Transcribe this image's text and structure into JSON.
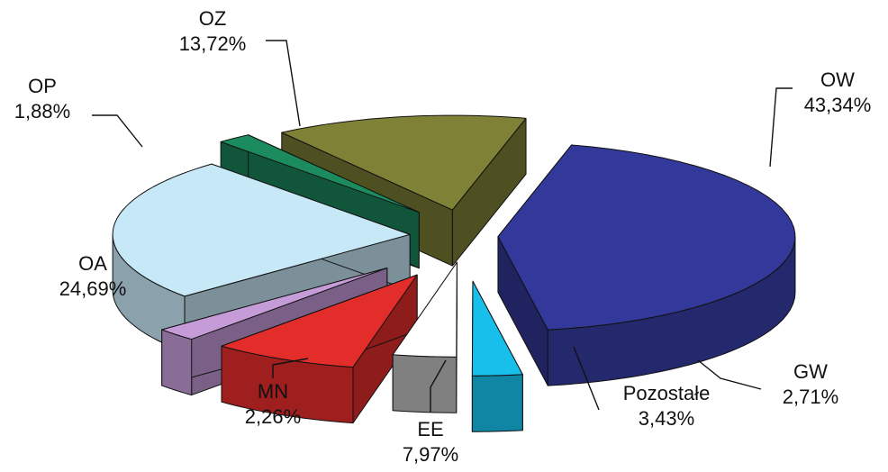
{
  "chart_data": {
    "type": "pie",
    "exploded": true,
    "three_d": true,
    "slices": [
      {
        "name": "OW",
        "value": 43.34,
        "label": "43,34%",
        "color": "#33399A"
      },
      {
        "name": "GW",
        "value": 2.71,
        "label": "2,71%",
        "color": "#17BFEA"
      },
      {
        "name": "Pozostałe",
        "value": 3.43,
        "label": "3,43%",
        "color": "#FFFFFF"
      },
      {
        "name": "EE",
        "value": 7.97,
        "label": "7,97%",
        "color": "#E32D2B"
      },
      {
        "name": "MN",
        "value": 2.26,
        "label": "2,26%",
        "color": "#C59BD8"
      },
      {
        "name": "OA",
        "value": 24.69,
        "label": "24,69%",
        "color": "#C7E8F7"
      },
      {
        "name": "OP",
        "value": 1.88,
        "label": "1,88%",
        "color": "#1C8B5E"
      },
      {
        "name": "OZ",
        "value": 13.72,
        "label": "13,72%",
        "color": "#7F8136"
      }
    ]
  }
}
